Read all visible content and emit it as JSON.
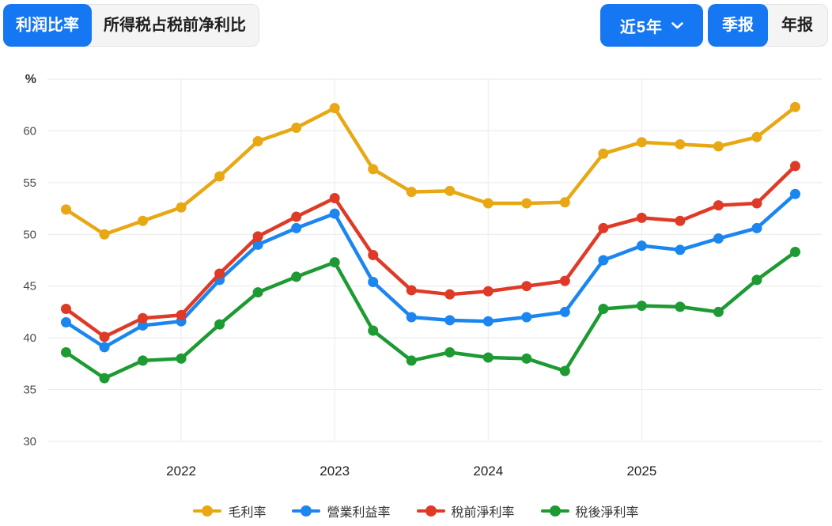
{
  "header": {
    "metric_tabs": [
      {
        "label": "利润比率",
        "active": true
      },
      {
        "label": "所得税占税前净利比",
        "active": false
      }
    ],
    "range_dropdown": {
      "label": "近5年"
    },
    "period_tabs": [
      {
        "label": "季报",
        "active": true
      },
      {
        "label": "年报",
        "active": false
      }
    ]
  },
  "colors": {
    "accent_blue": "#1577f2",
    "segment_inactive_bg": "#f4f4f4",
    "segment_border": "#e3e3e3",
    "gridline": "#e9e9e9",
    "axis_text": "#4a4a4a",
    "x_label_text": "#222222"
  },
  "chart_data": {
    "type": "line",
    "unit_label": "%",
    "ylim": [
      30,
      65
    ],
    "grid": true,
    "legend_position": "bottom",
    "y_ticks": [
      {
        "label": "%",
        "value": 65,
        "unit": true
      },
      {
        "label": "60",
        "value": 60
      },
      {
        "label": "55",
        "value": 55
      },
      {
        "label": "50",
        "value": 50
      },
      {
        "label": "45",
        "value": 45
      },
      {
        "label": "40",
        "value": 40
      },
      {
        "label": "35",
        "value": 35
      },
      {
        "label": "30",
        "value": 30
      }
    ],
    "x_year_labels": [
      {
        "label": "2022",
        "index": 3
      },
      {
        "label": "2023",
        "index": 7
      },
      {
        "label": "2024",
        "index": 11
      },
      {
        "label": "2025",
        "index": 15
      }
    ],
    "num_points": 20,
    "series": [
      {
        "key": "gross-margin",
        "name": "毛利率",
        "color": "#e8a814",
        "values": [
          52.4,
          50.0,
          51.3,
          52.6,
          55.6,
          59.0,
          60.3,
          62.2,
          56.3,
          54.1,
          54.2,
          53.0,
          53.0,
          53.1,
          57.8,
          58.9,
          58.7,
          58.5,
          59.4,
          62.3
        ]
      },
      {
        "key": "operating-margin",
        "name": "營業利益率",
        "color": "#1b86f0",
        "values": [
          41.5,
          39.1,
          41.2,
          41.6,
          45.6,
          49.0,
          50.6,
          52.0,
          45.4,
          42.0,
          41.7,
          41.6,
          42.0,
          42.5,
          47.5,
          48.9,
          48.5,
          49.6,
          50.6,
          53.9
        ]
      },
      {
        "key": "pretax-net-margin",
        "name": "稅前淨利率",
        "color": "#df3a27",
        "values": [
          42.8,
          40.1,
          41.9,
          42.2,
          46.2,
          49.8,
          51.7,
          53.5,
          48.0,
          44.6,
          44.2,
          44.5,
          45.0,
          45.5,
          50.6,
          51.6,
          51.3,
          52.8,
          53.0,
          56.6
        ]
      },
      {
        "key": "aftertax-net-margin",
        "name": "稅後淨利率",
        "color": "#1d9a32",
        "values": [
          38.6,
          36.1,
          37.8,
          38.0,
          41.3,
          44.4,
          45.9,
          47.3,
          40.7,
          37.8,
          38.6,
          38.1,
          38.0,
          36.8,
          42.8,
          43.1,
          43.0,
          42.5,
          45.6,
          48.3
        ]
      }
    ]
  }
}
